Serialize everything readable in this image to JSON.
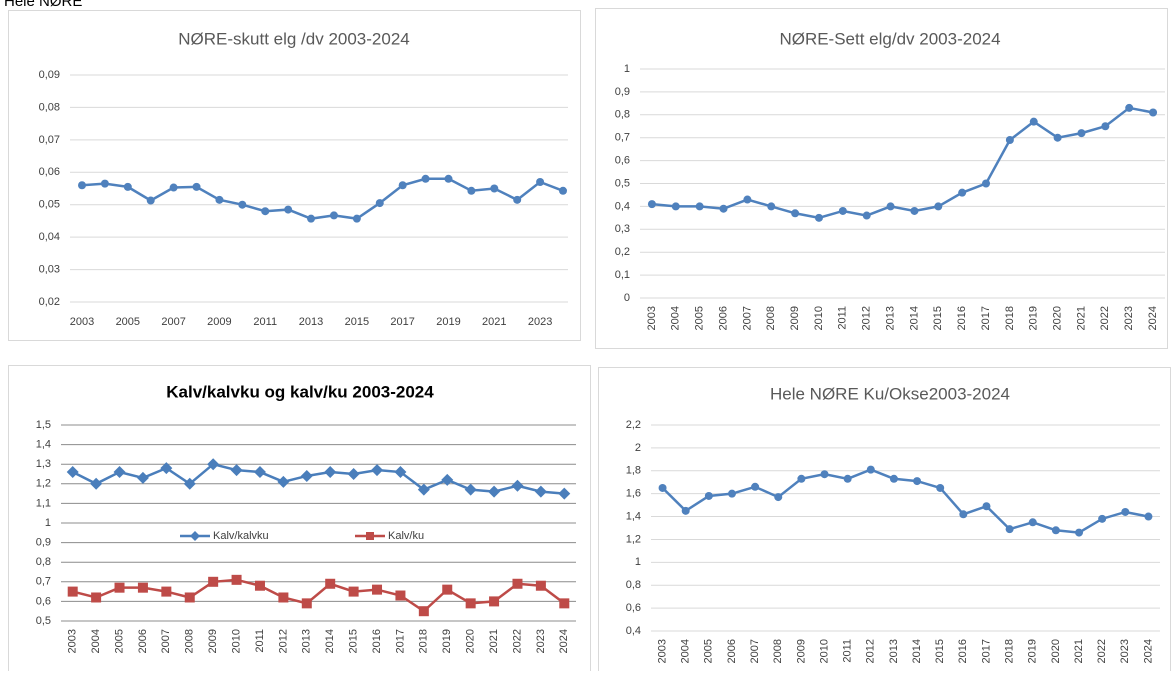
{
  "heading": "Hele NØRE",
  "chart_data": [
    {
      "type": "line",
      "title": "NØRE-skutt elg /dv 2003-2024",
      "x": [
        2003,
        2004,
        2005,
        2006,
        2007,
        2008,
        2009,
        2010,
        2011,
        2012,
        2013,
        2014,
        2015,
        2016,
        2017,
        2018,
        2019,
        2020,
        2021,
        2022,
        2023,
        2024
      ],
      "values": [
        0.056,
        0.0565,
        0.0555,
        0.0513,
        0.0553,
        0.0555,
        0.0515,
        0.05,
        0.048,
        0.0485,
        0.0457,
        0.0467,
        0.0457,
        0.0505,
        0.056,
        0.058,
        0.058,
        0.0543,
        0.055,
        0.0515,
        0.057,
        0.0543
      ],
      "color": "#4f81bd",
      "marker": "circle",
      "xlim": [
        2003,
        2024
      ],
      "xticks": [
        2003,
        2005,
        2007,
        2009,
        2011,
        2013,
        2015,
        2017,
        2019,
        2021,
        2023
      ],
      "ylim": [
        0.02,
        0.09
      ],
      "yticks": [
        {
          "value": 0.02,
          "label": "0,02"
        },
        {
          "value": 0.03,
          "label": "0,03"
        },
        {
          "value": 0.04,
          "label": "0,04"
        },
        {
          "value": 0.05,
          "label": "0,05"
        },
        {
          "value": 0.06,
          "label": "0,06"
        },
        {
          "value": 0.07,
          "label": "0,07"
        },
        {
          "value": 0.08,
          "label": "0,08"
        },
        {
          "value": 0.09,
          "label": "0,09"
        }
      ],
      "grid": true
    },
    {
      "type": "line",
      "title": "NØRE-Sett elg/dv 2003-2024",
      "categories": [
        "2003",
        "2004",
        "2005",
        "2006",
        "2007",
        "2008",
        "2009",
        "2010",
        "2011",
        "2012",
        "2013",
        "2014",
        "2015",
        "2016",
        "2017",
        "2018",
        "2019",
        "2020",
        "2021",
        "2022",
        "2023",
        "2024"
      ],
      "values": [
        0.41,
        0.4,
        0.4,
        0.39,
        0.43,
        0.4,
        0.37,
        0.35,
        0.38,
        0.36,
        0.4,
        0.38,
        0.4,
        0.46,
        0.5,
        0.69,
        0.77,
        0.7,
        0.72,
        0.75,
        0.83,
        0.81
      ],
      "color": "#4f81bd",
      "marker": "circle",
      "ylim": [
        0,
        1
      ],
      "yticks": [
        0,
        {
          "value": 0.1,
          "label": "0,1"
        },
        {
          "value": 0.2,
          "label": "0,2"
        },
        {
          "value": 0.3,
          "label": "0,3"
        },
        {
          "value": 0.4,
          "label": "0,4"
        },
        {
          "value": 0.5,
          "label": "0,5"
        },
        {
          "value": 0.6,
          "label": "0,6"
        },
        {
          "value": 0.7,
          "label": "0,7"
        },
        {
          "value": 0.8,
          "label": "0,8"
        },
        {
          "value": 0.9,
          "label": "0,9"
        },
        1
      ],
      "grid": true
    },
    {
      "type": "line",
      "title": "Kalv/kalvku og kalv/ku 2003-2024",
      "categories": [
        "2003",
        "2004",
        "2005",
        "2006",
        "2007",
        "2008",
        "2009",
        "2010",
        "2011",
        "2012",
        "2013",
        "2014",
        "2015",
        "2016",
        "2017",
        "2018",
        "2019",
        "2020",
        "2021",
        "2022",
        "2023",
        "2024"
      ],
      "series": [
        {
          "name": "Kalv/kalvku",
          "color": "#4a7ebb",
          "marker": "diamond",
          "values": [
            1.26,
            1.2,
            1.26,
            1.23,
            1.28,
            1.2,
            1.3,
            1.27,
            1.26,
            1.21,
            1.24,
            1.26,
            1.25,
            1.27,
            1.26,
            1.17,
            1.22,
            1.17,
            1.16,
            1.19,
            1.16,
            1.15
          ]
        },
        {
          "name": "Kalv/ku",
          "color": "#be4b48",
          "marker": "square",
          "values": [
            0.65,
            0.62,
            0.67,
            0.67,
            0.65,
            0.62,
            0.7,
            0.71,
            0.68,
            0.62,
            0.59,
            0.69,
            0.65,
            0.66,
            0.63,
            0.55,
            0.66,
            0.59,
            0.6,
            0.69,
            0.68,
            0.59
          ]
        }
      ],
      "ylim": [
        0.5,
        1.5
      ],
      "yticks": [
        {
          "value": 0.5,
          "label": "0,5"
        },
        {
          "value": 0.6,
          "label": "0,6"
        },
        {
          "value": 0.7,
          "label": "0,7"
        },
        {
          "value": 0.8,
          "label": "0,8"
        },
        {
          "value": 0.9,
          "label": "0,9"
        },
        1,
        {
          "value": 1.1,
          "label": "1,1"
        },
        {
          "value": 1.2,
          "label": "1,2"
        },
        {
          "value": 1.3,
          "label": "1,3"
        },
        {
          "value": 1.4,
          "label": "1,4"
        },
        {
          "value": 1.5,
          "label": "1,5"
        }
      ],
      "grid": true,
      "legend": "center"
    },
    {
      "type": "line",
      "title": "Hele NØRE Ku/Okse2003-2024",
      "categories": [
        "2003",
        "2004",
        "2005",
        "2006",
        "2007",
        "2008",
        "2009",
        "2010",
        "2011",
        "2012",
        "2013",
        "2014",
        "2015",
        "2016",
        "2017",
        "2018",
        "2019",
        "2020",
        "2021",
        "2022",
        "2023",
        "2024"
      ],
      "values": [
        1.65,
        1.45,
        1.58,
        1.6,
        1.66,
        1.57,
        1.73,
        1.77,
        1.73,
        1.81,
        1.73,
        1.71,
        1.65,
        1.42,
        1.49,
        1.29,
        1.35,
        1.28,
        1.26,
        1.38,
        1.44,
        1.4
      ],
      "color": "#4f81bd",
      "marker": "circle",
      "ylim": [
        0.4,
        2.2
      ],
      "yticks": [
        {
          "value": 0.4,
          "label": "0,4"
        },
        {
          "value": 0.6,
          "label": "0,6"
        },
        {
          "value": 0.8,
          "label": "0,8"
        },
        1,
        {
          "value": 1.2,
          "label": "1,2"
        },
        {
          "value": 1.4,
          "label": "1,4"
        },
        {
          "value": 1.6,
          "label": "1,6"
        },
        {
          "value": 1.8,
          "label": "1,8"
        },
        2,
        {
          "value": 2.2,
          "label": "2,2"
        }
      ],
      "grid": true
    }
  ]
}
